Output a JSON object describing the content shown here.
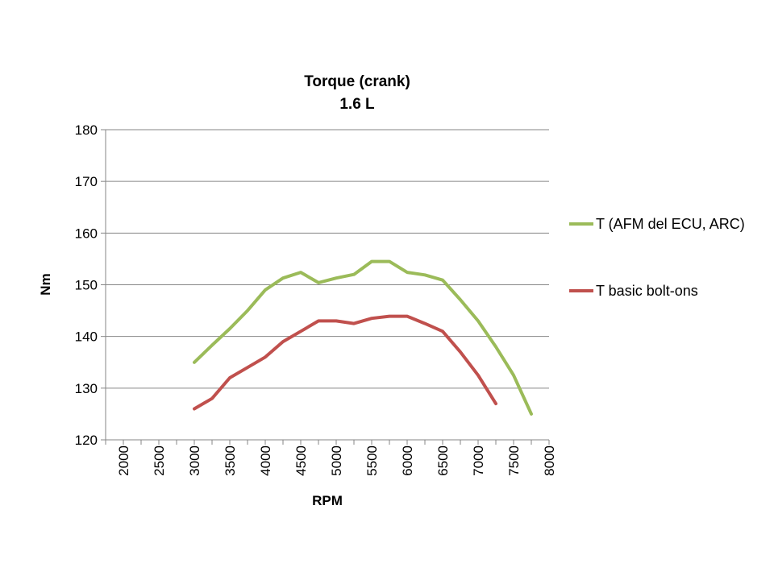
{
  "chart_data": {
    "type": "line",
    "title": "Torque (crank)",
    "subtitle": "1.6 L",
    "xlabel": "RPM",
    "ylabel": "Nm",
    "xlim": [
      1750,
      8000
    ],
    "ylim": [
      120,
      180
    ],
    "y_ticks": [
      120,
      130,
      140,
      150,
      160,
      170,
      180
    ],
    "x_ticks": [
      2000,
      2500,
      3000,
      3500,
      4000,
      4500,
      5000,
      5500,
      6000,
      6500,
      7000,
      7500,
      8000
    ],
    "grid": "horizontal",
    "legend_position": "right",
    "series": [
      {
        "name": "T (AFM del ECU, ARC)",
        "color": "#9BBB59",
        "x": [
          3000,
          3250,
          3500,
          3750,
          4000,
          4250,
          4500,
          4750,
          5000,
          5250,
          5500,
          5750,
          6000,
          6250,
          6500,
          6750,
          7000,
          7250,
          7500,
          7750
        ],
        "y": [
          135,
          138.3,
          141.5,
          145,
          149,
          151.3,
          152.4,
          150.4,
          151.3,
          152,
          154.5,
          154.5,
          152.4,
          151.9,
          150.9,
          147.1,
          143,
          138,
          132.5,
          125
        ]
      },
      {
        "name": "T basic bolt-ons",
        "color": "#C0504D",
        "x": [
          3000,
          3250,
          3500,
          3750,
          4000,
          4250,
          4500,
          4750,
          5000,
          5250,
          5500,
          5750,
          6000,
          6250,
          6500,
          6750,
          7000,
          7250
        ],
        "y": [
          126,
          128,
          132,
          134,
          136,
          139,
          141,
          143,
          143,
          142.5,
          143.5,
          143.9,
          143.9,
          142.5,
          141,
          137,
          132.5,
          127
        ]
      }
    ]
  }
}
